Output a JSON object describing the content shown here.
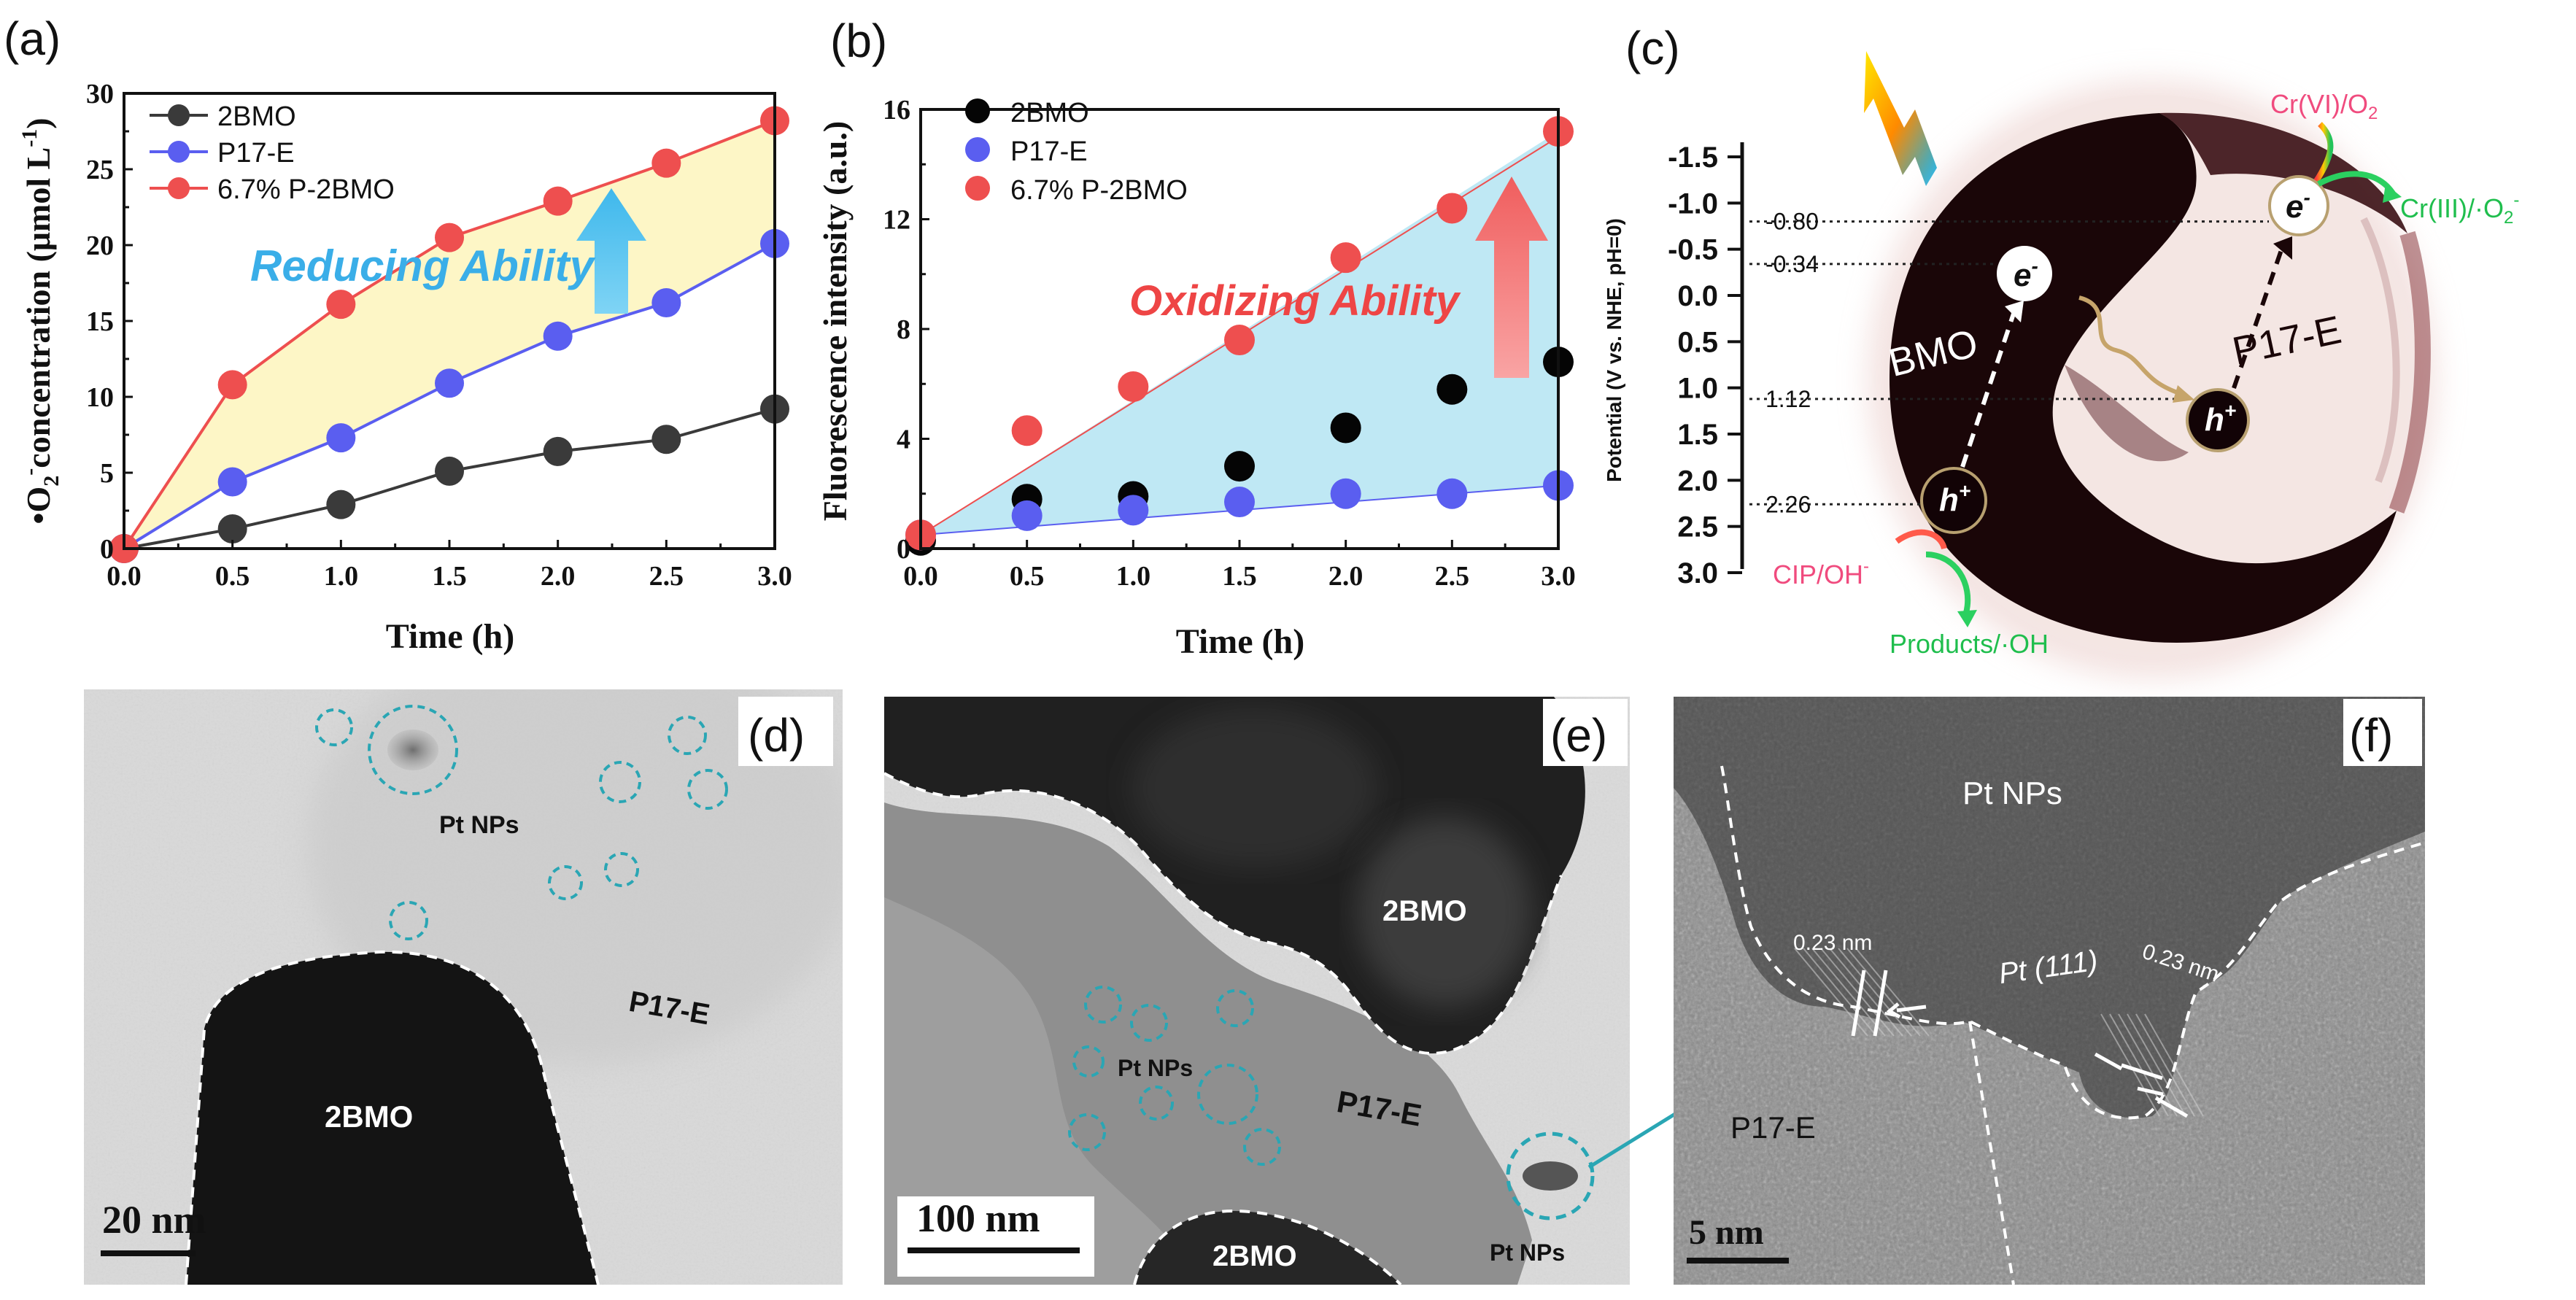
{
  "colors": {
    "series_2bmo": "#3a3a3a",
    "series_p17e": "#5a5ef0",
    "series_p2bmo": "#ee4f4f",
    "series_2bmo_b": "#050505",
    "fill_reduce": "#fdf6c6",
    "fill_oxid": "#bfe8f4",
    "arrow_blue": "#5ec7f0",
    "arrow_red": "#f47f7f",
    "circle_teal": "#2aa6b4",
    "text_pink": "#f04b7e",
    "text_green": "#1fbe4d"
  },
  "chart_data": [
    {
      "panel": "(a)",
      "type": "line",
      "title": "",
      "xlabel": "Time (h)",
      "ylabel": "•O2⁻concentration (μmol L⁻¹)",
      "x": [
        0.0,
        0.5,
        1.0,
        1.5,
        2.0,
        2.5,
        3.0
      ],
      "xlim": [
        0,
        3
      ],
      "ylim": [
        0,
        30
      ],
      "xticks": [
        "0.0",
        "0.5",
        "1.0",
        "1.5",
        "2.0",
        "2.5",
        "3.0"
      ],
      "yticks": [
        "0",
        "5",
        "10",
        "15",
        "20",
        "25",
        "30"
      ],
      "legend_position": "top-left",
      "series": [
        {
          "name": "2BMO",
          "color": "#3a3a3a",
          "values": [
            0,
            1.3,
            2.9,
            5.1,
            6.4,
            7.2,
            9.2
          ]
        },
        {
          "name": "P17-E",
          "color": "#5a5ef0",
          "values": [
            0,
            4.4,
            7.3,
            10.9,
            14.0,
            16.2,
            20.1
          ]
        },
        {
          "name": "6.7% P-2BMO",
          "color": "#ee4f4f",
          "values": [
            0,
            10.8,
            16.1,
            20.5,
            22.9,
            25.4,
            28.2
          ]
        }
      ],
      "annotation": "Reducing Ability"
    },
    {
      "panel": "(b)",
      "type": "scatter",
      "title": "",
      "xlabel": "Time (h)",
      "ylabel": "Fluorescence intensity (a.u.)",
      "x": [
        0.0,
        0.5,
        1.0,
        1.5,
        2.0,
        2.5,
        3.0
      ],
      "xlim": [
        0,
        3
      ],
      "ylim": [
        0,
        16
      ],
      "xticks": [
        "0.0",
        "0.5",
        "1.0",
        "1.5",
        "2.0",
        "2.5",
        "3.0"
      ],
      "yticks": [
        "0",
        "4",
        "8",
        "12",
        "16"
      ],
      "legend_position": "top-left",
      "series": [
        {
          "name": "2BMO",
          "color": "#050505",
          "values": [
            0.3,
            1.8,
            1.9,
            3.0,
            4.4,
            5.8,
            6.8
          ]
        },
        {
          "name": "P17-E",
          "color": "#5a5ef0",
          "values": [
            0.5,
            1.2,
            1.4,
            1.7,
            2.0,
            2.0,
            2.3
          ]
        },
        {
          "name": "6.7% P-2BMO",
          "color": "#ee4f4f",
          "values": [
            0.5,
            4.3,
            5.9,
            7.6,
            10.6,
            12.4,
            15.2
          ]
        }
      ],
      "annotation": "Oxidizing Ability"
    }
  ],
  "panels": {
    "a": "(a)",
    "b": "(b)",
    "c": "(c)",
    "d": "(d)",
    "e": "(e)",
    "f": "(f)"
  },
  "legend": {
    "s1": "2BMO",
    "s2": "P17-E",
    "s3": "6.7% P-2BMO"
  },
  "chart_a": {
    "ylabel_main": "•O",
    "ylabel_sub": "2",
    "ylabel_sup": "-",
    "ylabel_rest": "concentration (μmol L",
    "ylabel_unit_sup": "-1",
    "ylabel_close": ")",
    "xlabel": "Time (h)",
    "annotation": "Reducing Ability"
  },
  "chart_b": {
    "ylabel": "Fluorescence intensity (a.u.)",
    "xlabel": "Time (h)",
    "annotation": "Oxidizing Ability"
  },
  "diagram_c": {
    "axis_label": "Potential (V vs. NHE, pH=0)",
    "axis_ticks": [
      "-1.5",
      "-1.0",
      "-0.5",
      "0.0",
      "0.5",
      "1.0",
      "1.5",
      "2.0",
      "2.5",
      "3.0"
    ],
    "axis_values": [
      -1.5,
      -1.0,
      -0.5,
      0.0,
      0.5,
      1.0,
      1.5,
      2.0,
      2.5,
      3.0
    ],
    "levels": [
      "-0.80",
      "-0.34",
      "1.12",
      "2.26"
    ],
    "level_values": [
      -0.8,
      -0.34,
      1.12,
      2.26
    ],
    "bmo_label": "BMO",
    "p17e_label": "P17-E",
    "electron": "e",
    "electron_sup": "-",
    "hole": "h",
    "hole_sup": "+",
    "cr6": "Cr(VI)/O",
    "cr6_sub": "2",
    "cr3": "Cr(III)/·O",
    "cr3_sub": "2",
    "cr3_sup": "-",
    "cip": "CIP/OH",
    "cip_sup": "-",
    "products": "Products/·OH"
  },
  "tem_d": {
    "pt_label": "Pt NPs",
    "p17e_label": "P17-E",
    "bmo_label": "2BMO",
    "scale": "20 nm"
  },
  "tem_e": {
    "bmo_top": "2BMO",
    "pt_label": "Pt NPs",
    "p17e_label": "P17-E",
    "bmo_bottom": "2BMO",
    "pt_label_2": "Pt NPs",
    "scale": "100 nm"
  },
  "tem_f": {
    "pt_label": "Pt NPs",
    "d1": "0.23 nm",
    "plane": "Pt (111)",
    "d2": "0.23 nm",
    "p17e_label": "P17-E",
    "scale": "5 nm"
  }
}
